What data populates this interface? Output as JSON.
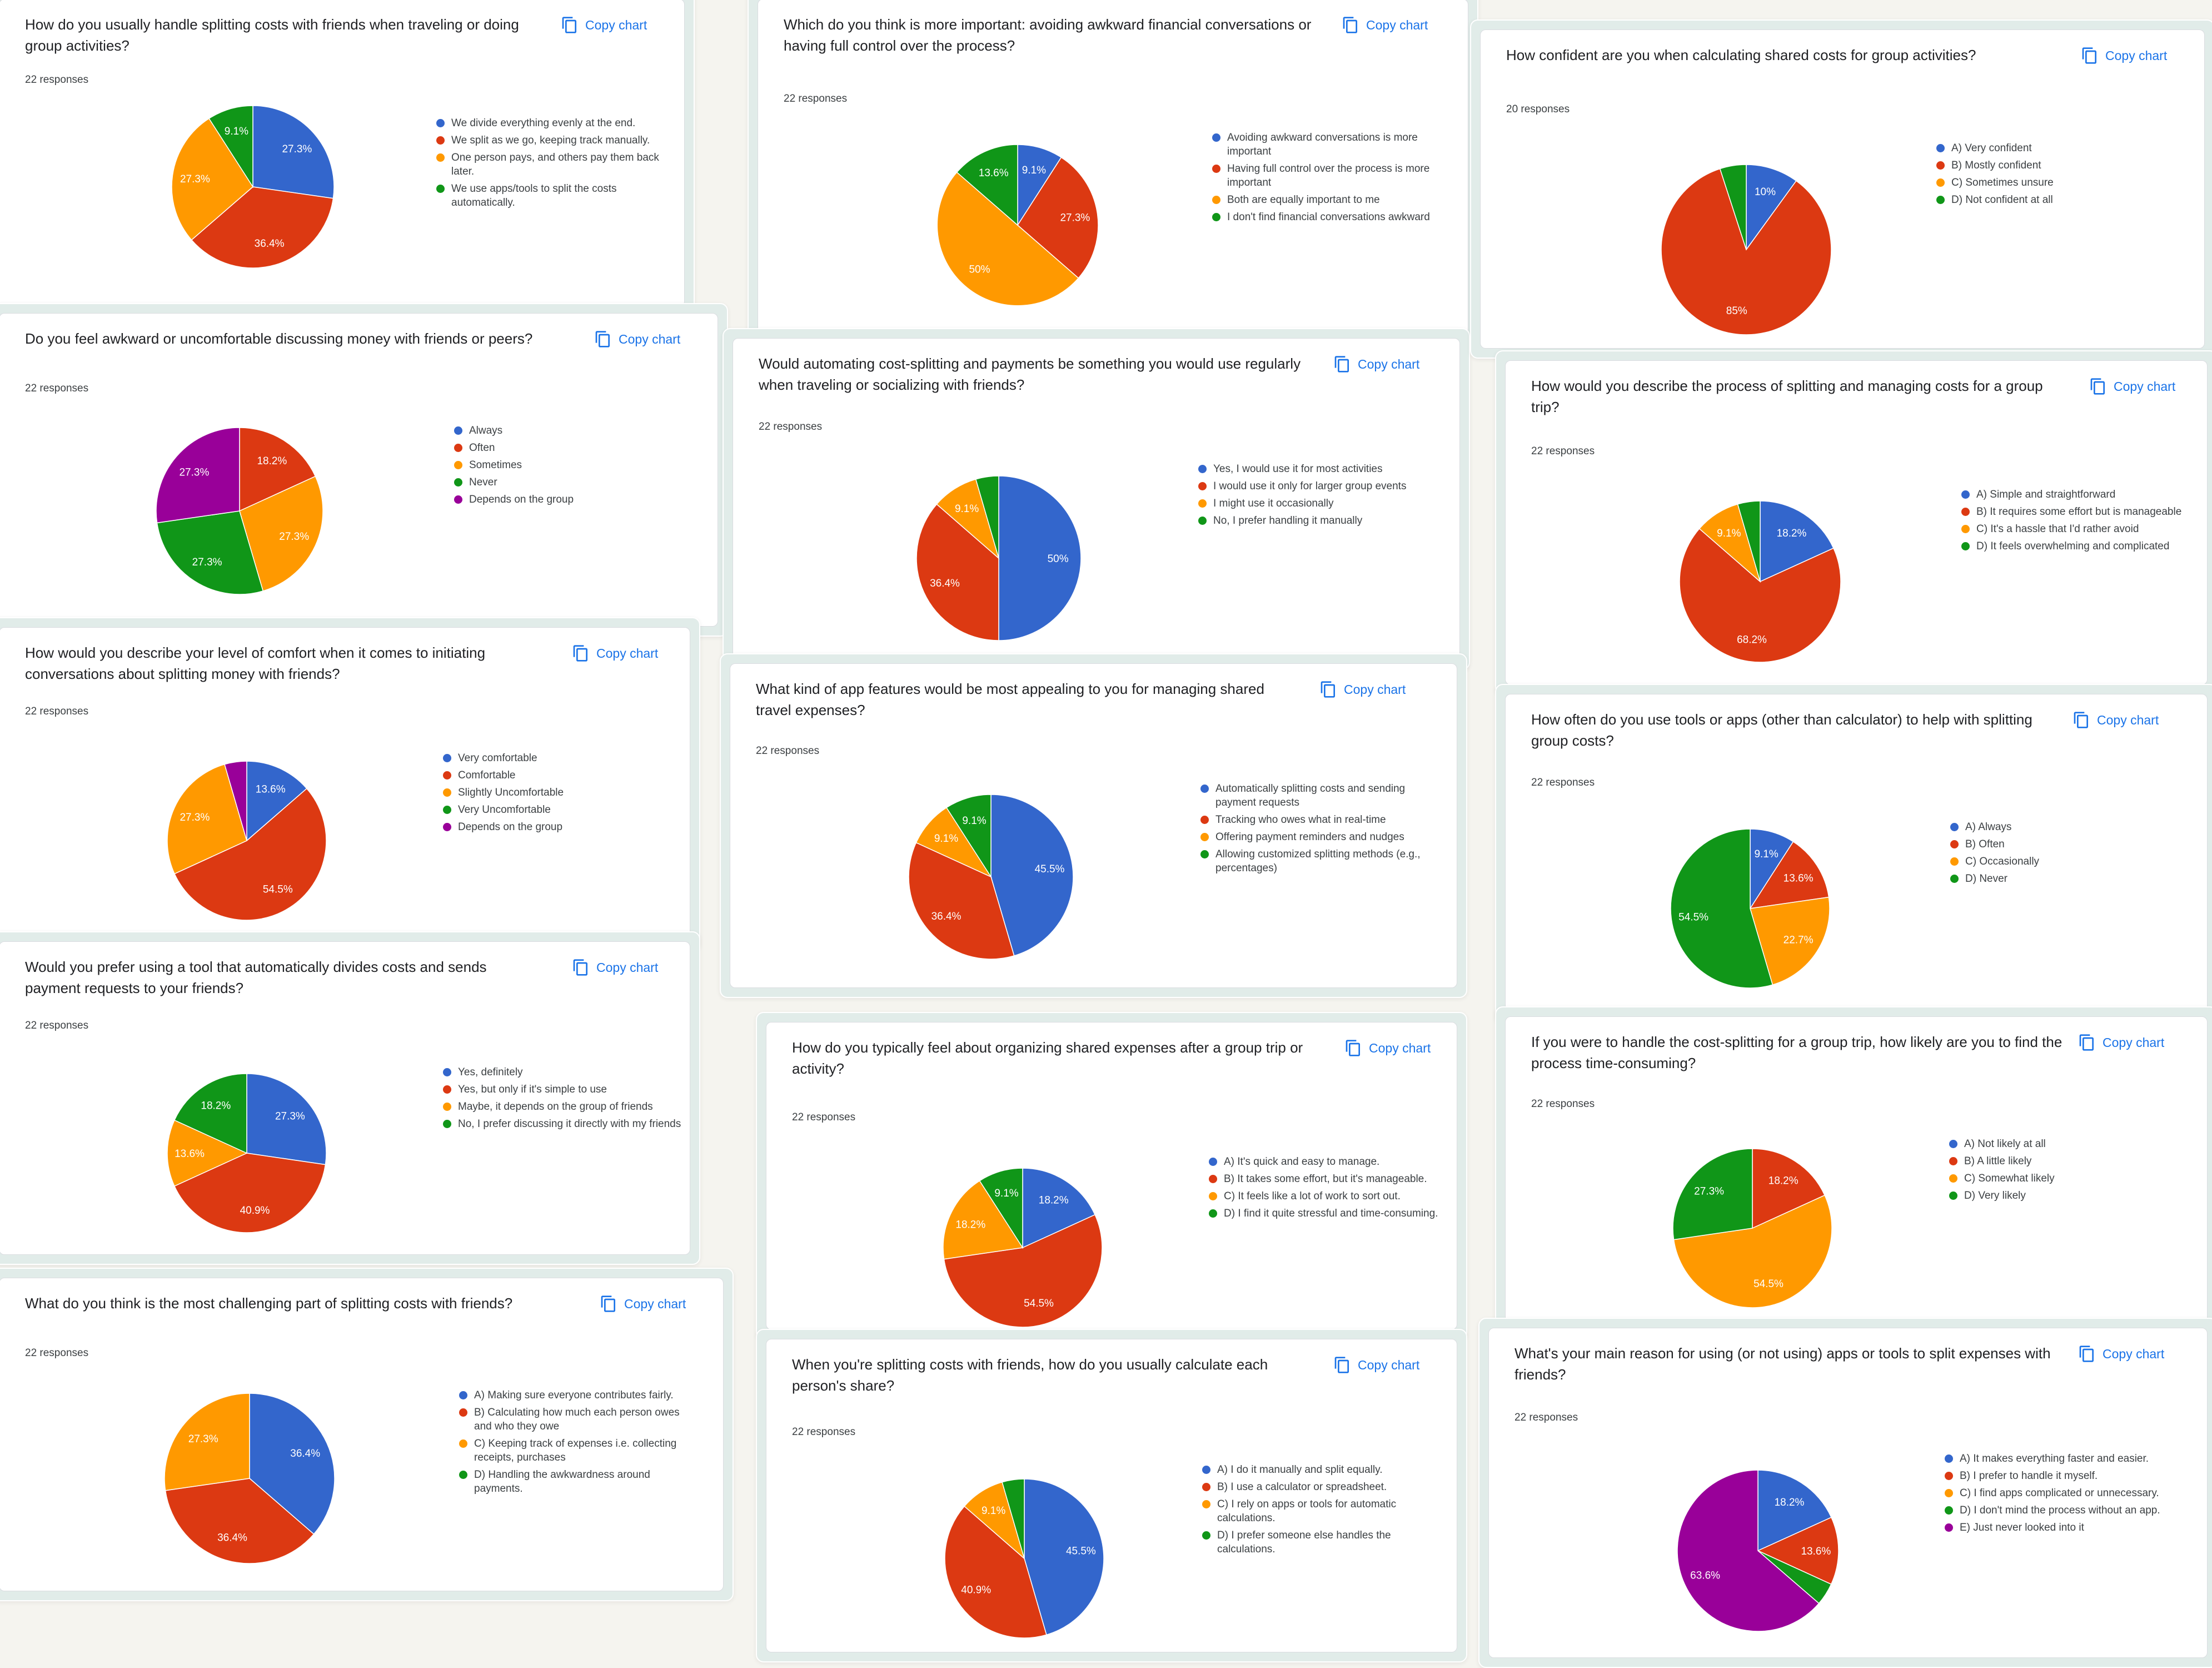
{
  "copy_label": "Copy chart",
  "colors": {
    "blue": "#3366cc",
    "red": "#dc3912",
    "orange": "#ff9900",
    "green": "#109618",
    "purple": "#990099"
  },
  "chart_data": [
    {
      "type": "pie",
      "title": "How do you usually handle splitting costs with friends when traveling or doing group activities?",
      "responses": "22 responses",
      "slices": [
        {
          "label": "We divide everything evenly at the end.",
          "value": 27.3,
          "color": "#3366cc"
        },
        {
          "label": "We split as we go, keeping track manually.",
          "value": 36.4,
          "color": "#dc3912"
        },
        {
          "label": "One person pays, and others pay them back later.",
          "value": 27.3,
          "color": "#ff9900"
        },
        {
          "label": "We use apps/tools to split the costs automatically.",
          "value": 9.1,
          "color": "#109618"
        }
      ]
    },
    {
      "type": "pie",
      "title": "Do you feel awkward or uncomfortable discussing money with friends or peers?",
      "responses": "22 responses",
      "slices": [
        {
          "label": "Always",
          "value": 0,
          "color": "#3366cc"
        },
        {
          "label": "Often",
          "value": 18.2,
          "color": "#dc3912"
        },
        {
          "label": "Sometimes",
          "value": 27.3,
          "color": "#ff9900"
        },
        {
          "label": "Never",
          "value": 27.3,
          "color": "#109618"
        },
        {
          "label": "Depends on the group",
          "value": 27.3,
          "color": "#990099"
        }
      ]
    },
    {
      "type": "pie",
      "title": "How would you describe your level of comfort when it comes to initiating conversations about splitting money with friends?",
      "responses": "22 responses",
      "slices": [
        {
          "label": "Very comfortable",
          "value": 13.6,
          "color": "#3366cc"
        },
        {
          "label": "Comfortable",
          "value": 54.5,
          "color": "#dc3912"
        },
        {
          "label": "Slightly Uncomfortable",
          "value": 27.3,
          "color": "#ff9900"
        },
        {
          "label": "Very Uncomfortable",
          "value": 0,
          "color": "#109618"
        },
        {
          "label": "Depends on the group",
          "value": 4.5,
          "color": "#990099"
        }
      ]
    },
    {
      "type": "pie",
      "title": "Would you prefer using a tool that automatically divides costs and sends payment requests to your friends?",
      "responses": "22 responses",
      "slices": [
        {
          "label": "Yes, definitely",
          "value": 27.3,
          "color": "#3366cc"
        },
        {
          "label": "Yes, but only if it's simple to use",
          "value": 40.9,
          "color": "#dc3912"
        },
        {
          "label": "Maybe, it depends on the group of friends",
          "value": 13.6,
          "color": "#ff9900"
        },
        {
          "label": "No, I prefer discussing it directly with my friends",
          "value": 18.2,
          "color": "#109618"
        }
      ]
    },
    {
      "type": "pie",
      "title": "What do you think is the most challenging part of splitting costs with friends?",
      "responses": "22 responses",
      "slices": [
        {
          "label": "A) Making sure everyone contributes fairly.",
          "value": 36.4,
          "color": "#3366cc"
        },
        {
          "label": "B) Calculating how much each person owes and who they owe",
          "value": 36.4,
          "color": "#dc3912"
        },
        {
          "label": "C) Keeping track of expenses i.e. collecting receipts, purchases",
          "value": 27.3,
          "color": "#ff9900"
        },
        {
          "label": "D) Handling the awkwardness around payments.",
          "value": 0,
          "color": "#109618"
        }
      ]
    },
    {
      "type": "pie",
      "title": "Which do you think is more important: avoiding awkward financial conversations or having full control over the process?",
      "responses": "22 responses",
      "slices": [
        {
          "label": "Avoiding awkward conversations is more important",
          "value": 9.1,
          "color": "#3366cc"
        },
        {
          "label": "Having full control over the process is more important",
          "value": 27.3,
          "color": "#dc3912"
        },
        {
          "label": "Both are equally important to me",
          "value": 50,
          "color": "#ff9900"
        },
        {
          "label": "I don't find financial conversations awkward",
          "value": 13.6,
          "color": "#109618"
        }
      ]
    },
    {
      "type": "pie",
      "title": "Would automating cost-splitting and payments be something you would use regularly when traveling or socializing with friends?",
      "responses": "22 responses",
      "slices": [
        {
          "label": "Yes, I would use it for most activities",
          "value": 50,
          "color": "#3366cc"
        },
        {
          "label": "I would use it only for larger group events",
          "value": 36.4,
          "color": "#dc3912"
        },
        {
          "label": "I might use it occasionally",
          "value": 9.1,
          "color": "#ff9900"
        },
        {
          "label": "No, I prefer handling it manually",
          "value": 4.5,
          "color": "#109618"
        }
      ]
    },
    {
      "type": "pie",
      "title": "What kind of app features would be most appealing to you for managing shared travel expenses?",
      "responses": "22 responses",
      "slices": [
        {
          "label": "Automatically splitting costs and sending payment requests",
          "value": 45.5,
          "color": "#3366cc"
        },
        {
          "label": "Tracking who owes what in real-time",
          "value": 36.4,
          "color": "#dc3912"
        },
        {
          "label": "Offering payment reminders and nudges",
          "value": 9.1,
          "color": "#ff9900"
        },
        {
          "label": "Allowing customized splitting methods (e.g., percentages)",
          "value": 9.1,
          "color": "#109618"
        }
      ]
    },
    {
      "type": "pie",
      "title": "How do you typically feel about organizing shared expenses after a group trip or activity?",
      "responses": "22 responses",
      "slices": [
        {
          "label": "A) It's quick and easy to manage.",
          "value": 18.2,
          "color": "#3366cc"
        },
        {
          "label": "B) It takes some effort, but it's manageable.",
          "value": 54.5,
          "color": "#dc3912"
        },
        {
          "label": "C) It feels like a lot of work to sort out.",
          "value": 18.2,
          "color": "#ff9900"
        },
        {
          "label": "D) I find it quite stressful and time-consuming.",
          "value": 9.1,
          "color": "#109618"
        }
      ]
    },
    {
      "type": "pie",
      "title": "When you're splitting costs with friends, how do you usually calculate each person's share?",
      "responses": "22 responses",
      "slices": [
        {
          "label": "A) I do it manually and split equally.",
          "value": 45.5,
          "color": "#3366cc"
        },
        {
          "label": "B) I use a calculator or spreadsheet.",
          "value": 40.9,
          "color": "#dc3912"
        },
        {
          "label": "C) I rely on apps or tools for automatic calculations.",
          "value": 9.1,
          "color": "#ff9900"
        },
        {
          "label": "D) I prefer someone else handles the calculations.",
          "value": 4.5,
          "color": "#109618"
        }
      ]
    },
    {
      "type": "pie",
      "title": "How confident are you when calculating shared costs for group activities?",
      "responses": "20 responses",
      "slices": [
        {
          "label": "A) Very confident",
          "value": 10,
          "color": "#3366cc"
        },
        {
          "label": "B) Mostly confident",
          "value": 85,
          "color": "#dc3912"
        },
        {
          "label": "C) Sometimes unsure",
          "value": 0,
          "color": "#ff9900"
        },
        {
          "label": "D) Not confident at all",
          "value": 5,
          "color": "#109618"
        }
      ]
    },
    {
      "type": "pie",
      "title": "How would you describe the process of splitting and managing costs for a group trip?",
      "responses": "22 responses",
      "slices": [
        {
          "label": "A) Simple and straightforward",
          "value": 18.2,
          "color": "#3366cc"
        },
        {
          "label": "B) It requires some effort but is manageable",
          "value": 68.2,
          "color": "#dc3912"
        },
        {
          "label": "C) It's a hassle that I'd rather avoid",
          "value": 9.1,
          "color": "#ff9900"
        },
        {
          "label": "D) It feels overwhelming and complicated",
          "value": 4.5,
          "color": "#109618"
        }
      ]
    },
    {
      "type": "pie",
      "title": "How often do you use tools or apps (other than calculator) to help with splitting group costs?",
      "responses": "22 responses",
      "slices": [
        {
          "label": "A) Always",
          "value": 9.1,
          "color": "#3366cc"
        },
        {
          "label": "B) Often",
          "value": 13.6,
          "color": "#dc3912"
        },
        {
          "label": "C) Occasionally",
          "value": 22.7,
          "color": "#ff9900"
        },
        {
          "label": "D) Never",
          "value": 54.5,
          "color": "#109618"
        }
      ]
    },
    {
      "type": "pie",
      "title": "If you were to handle the cost-splitting for a group trip, how likely are you to find the process time-consuming?",
      "responses": "22 responses",
      "slices": [
        {
          "label": "A) Not likely at all",
          "value": 0,
          "color": "#3366cc"
        },
        {
          "label": "B) A little likely",
          "value": 18.2,
          "color": "#dc3912"
        },
        {
          "label": "C) Somewhat likely",
          "value": 54.5,
          "color": "#ff9900"
        },
        {
          "label": "D) Very likely",
          "value": 27.3,
          "color": "#109618"
        }
      ]
    },
    {
      "type": "pie",
      "title": "What's your main reason for using (or not using) apps or tools to split expenses with friends?",
      "responses": "22 responses",
      "slices": [
        {
          "label": "A) It makes everything faster and easier.",
          "value": 18.2,
          "color": "#3366cc"
        },
        {
          "label": "B) I prefer to handle it myself.",
          "value": 13.6,
          "color": "#dc3912"
        },
        {
          "label": "C) I find apps complicated or unnecessary.",
          "value": 0,
          "color": "#ff9900"
        },
        {
          "label": "D) I don't mind the process without an app.",
          "value": 4.5,
          "color": "#109618"
        },
        {
          "label": "E) Just never looked into it",
          "value": 63.6,
          "color": "#990099"
        }
      ]
    }
  ]
}
